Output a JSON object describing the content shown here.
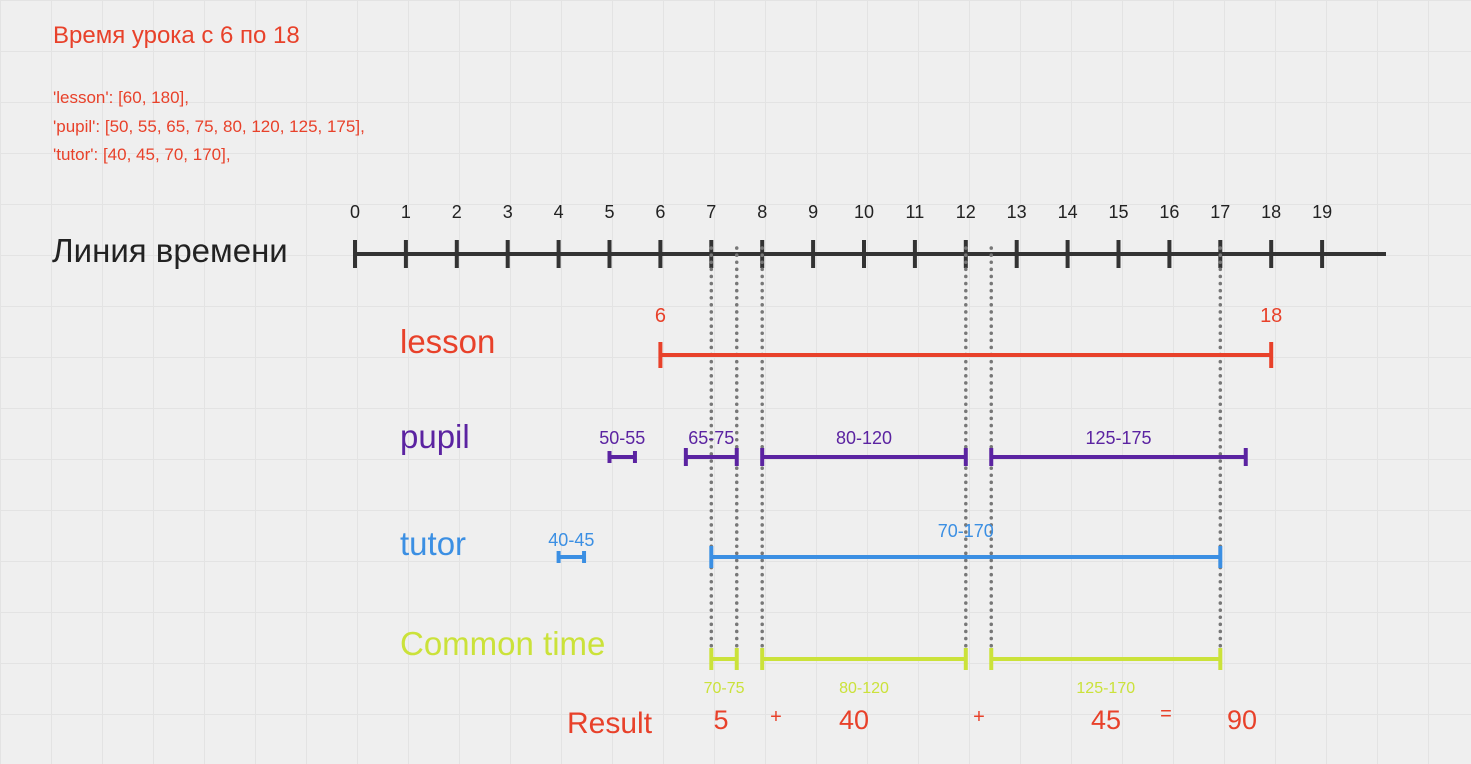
{
  "header": {
    "title": "Время урока с 6 по 18",
    "code_lines": [
      "'lesson': [60, 180],",
      "'pupil': [50, 55, 65, 75, 80, 120, 125, 175],",
      "'tutor': [40, 45, 70, 170],"
    ]
  },
  "timeline": {
    "label": "Линия времени",
    "ticks": [
      "0",
      "1",
      "2",
      "3",
      "4",
      "5",
      "6",
      "7",
      "8",
      "9",
      "10",
      "11",
      "12",
      "13",
      "14",
      "15",
      "16",
      "17",
      "18",
      "19"
    ]
  },
  "rows": {
    "lesson": {
      "label": "lesson",
      "start_label": "6",
      "end_label": "18",
      "segments": [
        [
          60,
          180
        ]
      ]
    },
    "pupil": {
      "label": "pupil",
      "segments": [
        {
          "start": 50,
          "end": 55,
          "label": "50-55"
        },
        {
          "start": 65,
          "end": 75,
          "label": "65-75"
        },
        {
          "start": 80,
          "end": 120,
          "label": "80-120"
        },
        {
          "start": 125,
          "end": 175,
          "label": "125-175"
        }
      ]
    },
    "tutor": {
      "label": "tutor",
      "segments": [
        {
          "start": 40,
          "end": 45,
          "label": "40-45"
        },
        {
          "start": 70,
          "end": 170,
          "label": "70-170"
        }
      ]
    },
    "common": {
      "label": "Common time",
      "segments": [
        {
          "start": 70,
          "end": 75,
          "label": "70-75"
        },
        {
          "start": 80,
          "end": 120,
          "label": "80-120"
        },
        {
          "start": 125,
          "end": 170,
          "label": "125-170"
        }
      ]
    }
  },
  "result": {
    "label": "Result",
    "parts": [
      "5",
      "+",
      "40",
      "+",
      "45",
      "=",
      "90"
    ]
  },
  "colors": {
    "lesson": "#e8412a",
    "pupil": "#5b23a1",
    "tutor": "#3b8fe3",
    "common": "#cbe23a",
    "text_red": "#e8412a",
    "axis": "#333333",
    "guide": "#777777"
  }
}
